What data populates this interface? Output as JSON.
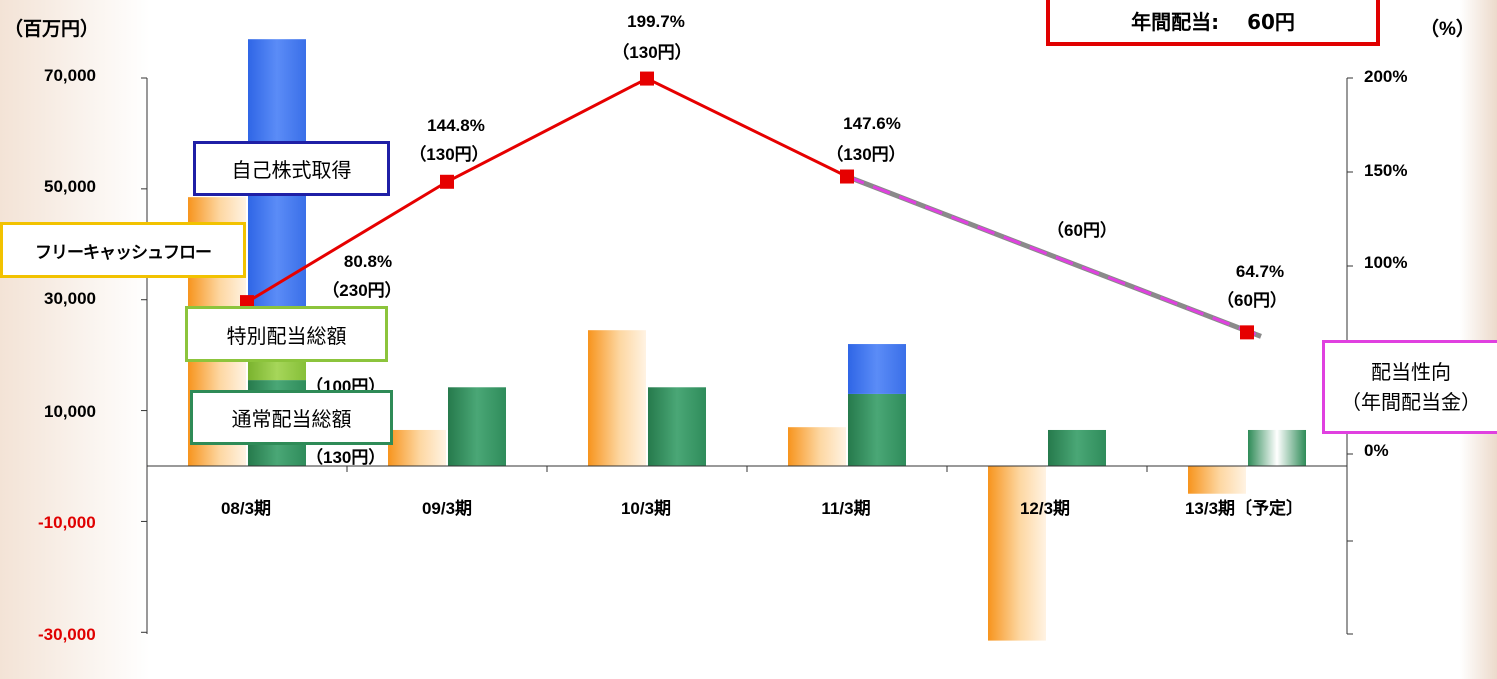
{
  "chart_data": {
    "type": "bar",
    "left_axis_unit": "（百万円）",
    "right_axis_unit": "（%）",
    "categories": [
      "08/3期",
      "09/3期",
      "10/3期",
      "11/3期",
      "12/3期",
      "13/3期〔予定〕"
    ],
    "left_ticks": [
      "70,000",
      "50,000",
      "30,000",
      "10,000",
      "-10,000",
      "-30,000"
    ],
    "right_ticks": [
      "200%",
      "150%",
      "100%",
      "0%"
    ],
    "ylim": [
      -30000,
      70000
    ],
    "y2lim": [
      0,
      200
    ],
    "series": [
      {
        "name": "フリーキャッシュフロー",
        "type": "bar",
        "values": [
          48500,
          6500,
          24500,
          7000,
          -31500,
          -5000
        ]
      },
      {
        "name": "自己株式取得",
        "type": "stacked-bar-top",
        "values": [
          49000,
          0,
          0,
          9000,
          0,
          0
        ]
      },
      {
        "name": "特別配当総額",
        "type": "stacked-bar-middle",
        "values": [
          12500,
          0,
          0,
          0,
          0,
          0
        ]
      },
      {
        "name": "通常配当総額",
        "type": "stacked-bar-base",
        "values": [
          15500,
          14200,
          14200,
          13000,
          6500,
          6500
        ]
      },
      {
        "name": "配当性向（年間配当金）",
        "type": "line",
        "axis": "right",
        "values": [
          80.8,
          144.8,
          199.7,
          147.6,
          null,
          64.7
        ]
      }
    ],
    "annotations": {
      "ratio_labels": [
        "80.8%",
        "144.8%",
        "199.7%",
        "147.6%",
        "64.7%"
      ],
      "dividend_labels": [
        "（230円）",
        "（130円）",
        "（130円）",
        "（130円）",
        "（60円）",
        "（60円）"
      ],
      "special_dividend_label": "（100円）",
      "regular_dividend_label": "（130円）"
    }
  },
  "legend": {
    "fcf": "フリーキャッシュフロー",
    "buyback": "自己株式取得",
    "special": "特別配当総額",
    "regular": "通常配当総額",
    "payout_line1": "配当性向",
    "payout_line2": "（年間配当金）"
  },
  "dividend_box": {
    "label": "年間配当:",
    "value": "60円"
  },
  "colors": {
    "fcf": "#f7941d",
    "buyback": "#3f73f0",
    "special": "#8cc43c",
    "regular": "#2e8b57",
    "line": "#e60000",
    "forecast_line": "#e040e0",
    "negative_tick": "#e00000"
  }
}
